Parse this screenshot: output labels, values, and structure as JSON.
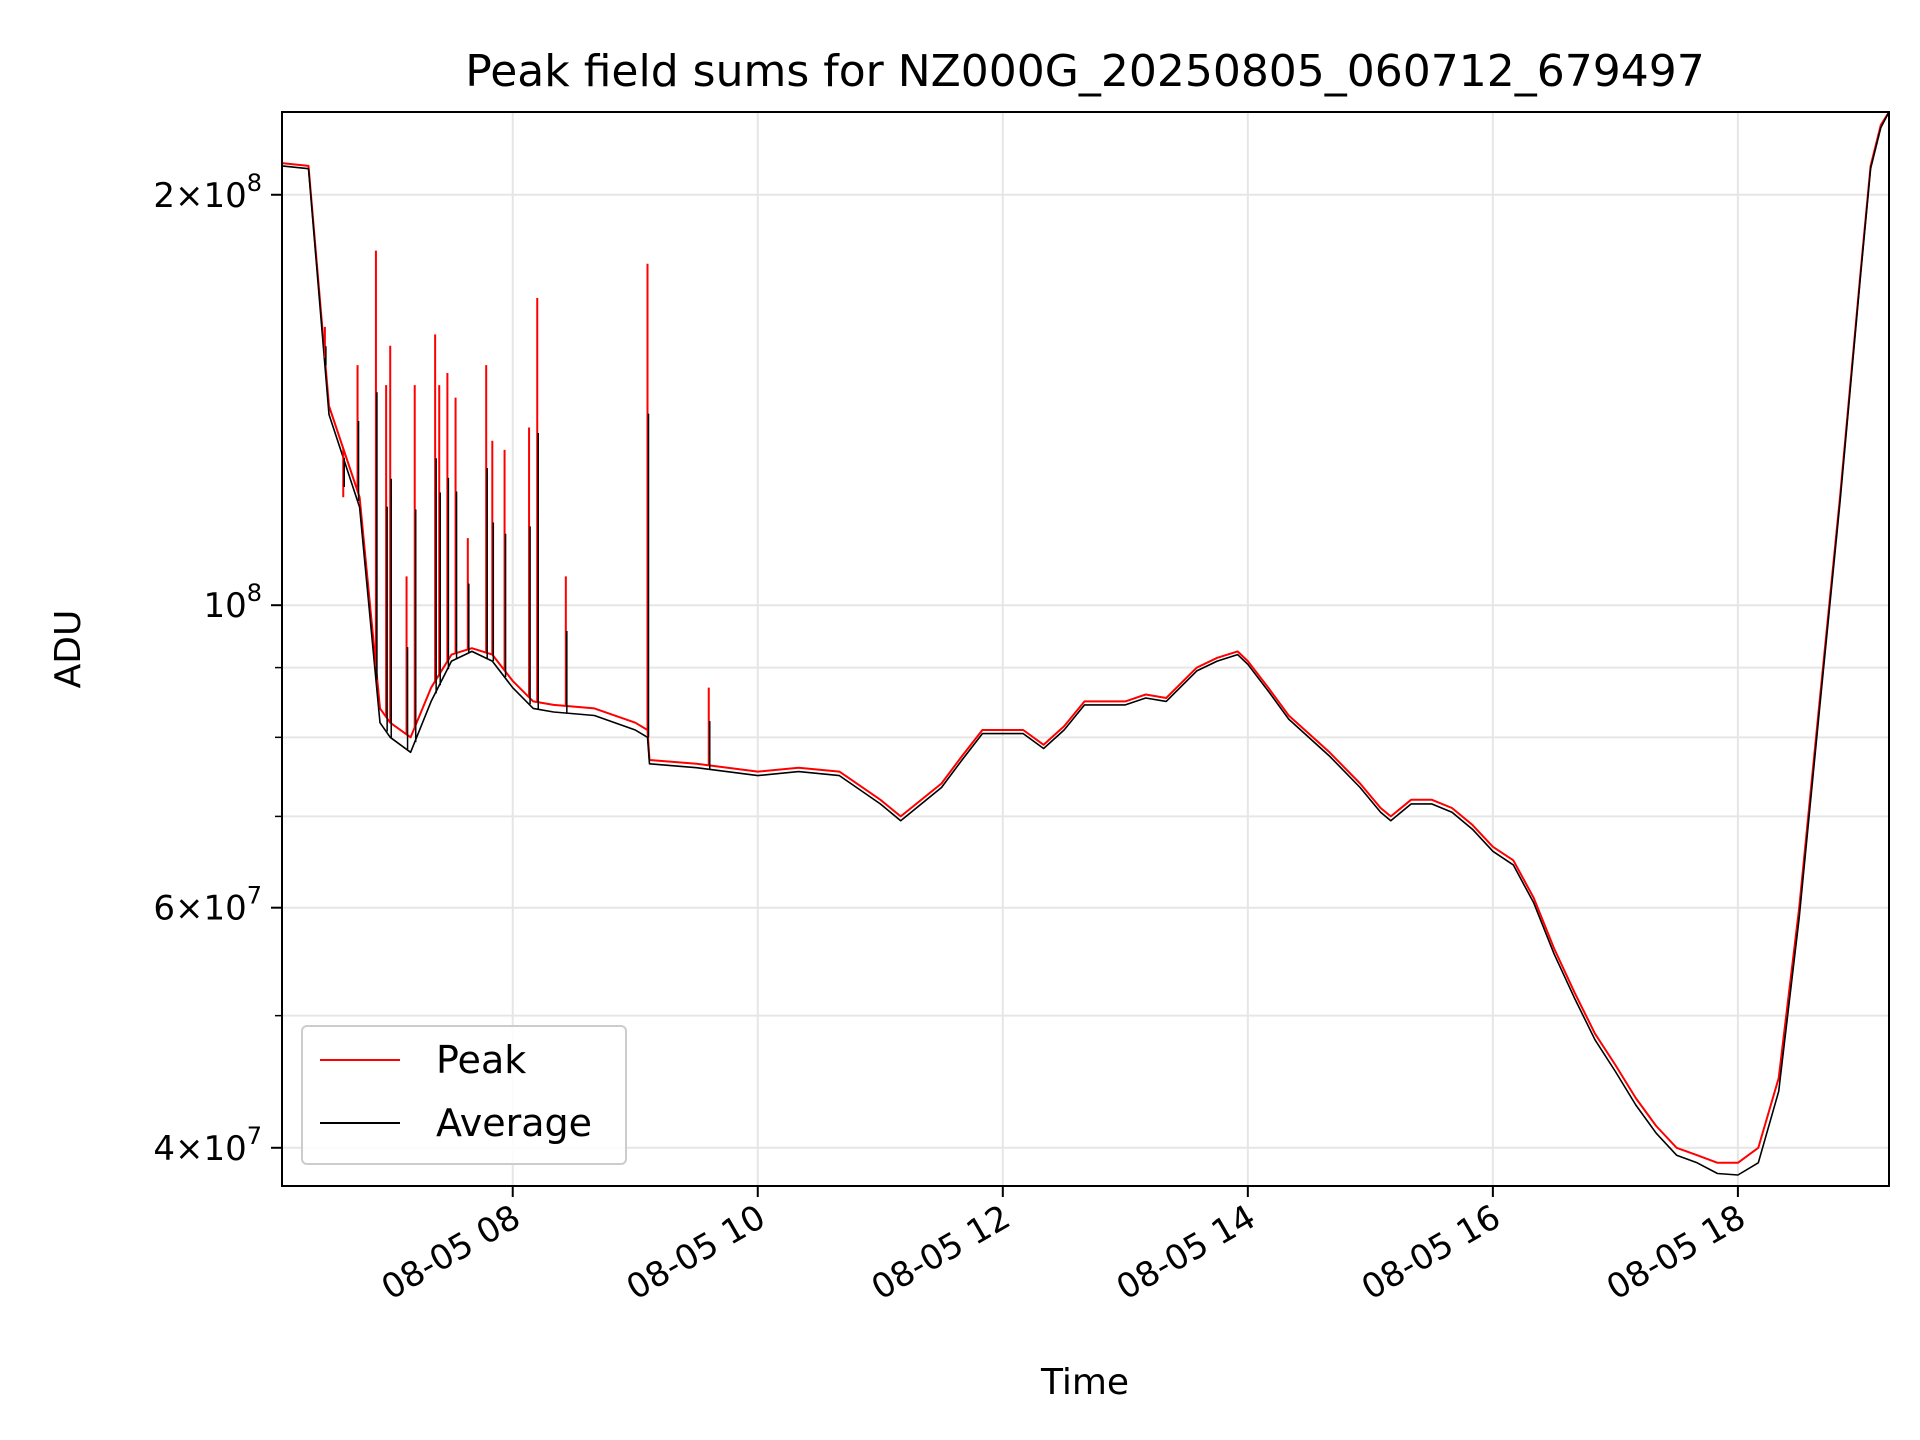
{
  "chart_data": {
    "type": "line",
    "title": "Peak field sums for NZ000G_20250805_060712_679497",
    "xlabel": "Time",
    "ylabel": "ADU",
    "yscale": "log",
    "ylim": [
      37500000,
      230000000
    ],
    "xlim": [
      "08-05 06:07",
      "08-05 19:14"
    ],
    "grid": true,
    "legend_position": "lower left",
    "x_ticks": [
      "08-05 08",
      "08-05 10",
      "08-05 12",
      "08-05 14",
      "08-05 16",
      "08-05 18"
    ],
    "y_major_ticks": [
      {
        "value": 40000000,
        "mantissa": "4",
        "exp": "7"
      },
      {
        "value": 60000000,
        "mantissa": "6",
        "exp": "7"
      },
      {
        "value": 100000000,
        "mantissa": "",
        "exp": "8"
      },
      {
        "value": 200000000,
        "mantissa": "2",
        "exp": "8"
      }
    ],
    "y_minor_gridlines": [
      50000000,
      70000000,
      80000000,
      90000000
    ],
    "series": [
      {
        "name": "Peak",
        "color": "#ff0000",
        "x": [
          "06:07",
          "06:20",
          "06:30",
          "06:45",
          "06:55",
          "07:00",
          "07:10",
          "07:20",
          "07:30",
          "07:40",
          "07:50",
          "08:00",
          "08:10",
          "08:20",
          "08:40",
          "09:00",
          "09:06",
          "09:07",
          "09:30",
          "10:00",
          "10:20",
          "10:40",
          "11:00",
          "11:10",
          "11:30",
          "11:40",
          "11:50",
          "12:00",
          "12:10",
          "12:20",
          "12:30",
          "12:40",
          "12:50",
          "13:00",
          "13:10",
          "13:20",
          "13:35",
          "13:45",
          "13:55",
          "14:00",
          "14:10",
          "14:20",
          "14:40",
          "14:55",
          "15:05",
          "15:10",
          "15:20",
          "15:30",
          "15:40",
          "15:50",
          "16:00",
          "16:10",
          "16:20",
          "16:30",
          "16:40",
          "16:50",
          "17:00",
          "17:10",
          "17:20",
          "17:30",
          "17:40",
          "17:50",
          "18:00",
          "18:10",
          "18:20",
          "18:30",
          "18:40",
          "18:50",
          "19:00",
          "19:05",
          "19:10",
          "19:14"
        ],
        "y": [
          211000000,
          210000000,
          140000000,
          120000000,
          84000000,
          82000000,
          80000000,
          87000000,
          92000000,
          93000000,
          92000000,
          88000000,
          85000000,
          84500000,
          84000000,
          82000000,
          81000000,
          77000000,
          76500000,
          75500000,
          76000000,
          75500000,
          72000000,
          70000000,
          74000000,
          77500000,
          81000000,
          81000000,
          81000000,
          79000000,
          81500000,
          85000000,
          85000000,
          85000000,
          86000000,
          85500000,
          90000000,
          91500000,
          92500000,
          91000000,
          87000000,
          83000000,
          78000000,
          74000000,
          71000000,
          70000000,
          72000000,
          72000000,
          71000000,
          69000000,
          66500000,
          65000000,
          61000000,
          56000000,
          52000000,
          48500000,
          46000000,
          43500000,
          41500000,
          40000000,
          39500000,
          39000000,
          39000000,
          40000000,
          45000000,
          60000000,
          85000000,
          120000000,
          175000000,
          210000000,
          225000000,
          230000000
        ],
        "spikes": [
          {
            "x": "06:28",
            "y": 160000000
          },
          {
            "x": "06:37",
            "y": 120000000
          },
          {
            "x": "06:44",
            "y": 150000000
          },
          {
            "x": "06:53",
            "y": 182000000
          },
          {
            "x": "06:58",
            "y": 145000000
          },
          {
            "x": "07:00",
            "y": 155000000
          },
          {
            "x": "07:08",
            "y": 105000000
          },
          {
            "x": "07:12",
            "y": 145000000
          },
          {
            "x": "07:22",
            "y": 158000000
          },
          {
            "x": "07:24",
            "y": 145000000
          },
          {
            "x": "07:28",
            "y": 148000000
          },
          {
            "x": "07:32",
            "y": 142000000
          },
          {
            "x": "07:38",
            "y": 112000000
          },
          {
            "x": "07:47",
            "y": 150000000
          },
          {
            "x": "07:50",
            "y": 132000000
          },
          {
            "x": "07:56",
            "y": 130000000
          },
          {
            "x": "08:08",
            "y": 135000000
          },
          {
            "x": "08:12",
            "y": 168000000
          },
          {
            "x": "08:26",
            "y": 105000000
          },
          {
            "x": "09:06",
            "y": 178000000
          },
          {
            "x": "09:36",
            "y": 87000000
          }
        ]
      },
      {
        "name": "Average",
        "color": "#000000",
        "x": [
          "06:07",
          "06:20",
          "06:30",
          "06:45",
          "06:55",
          "07:00",
          "07:10",
          "07:20",
          "07:30",
          "07:40",
          "07:50",
          "08:00",
          "08:10",
          "08:20",
          "08:40",
          "09:00",
          "09:06",
          "09:07",
          "09:30",
          "10:00",
          "10:20",
          "10:40",
          "11:00",
          "11:10",
          "11:30",
          "11:40",
          "11:50",
          "12:00",
          "12:10",
          "12:20",
          "12:30",
          "12:40",
          "12:50",
          "13:00",
          "13:10",
          "13:20",
          "13:35",
          "13:45",
          "13:55",
          "14:00",
          "14:10",
          "14:20",
          "14:40",
          "14:55",
          "15:05",
          "15:10",
          "15:20",
          "15:30",
          "15:40",
          "15:50",
          "16:00",
          "16:10",
          "16:20",
          "16:30",
          "16:40",
          "16:50",
          "17:00",
          "17:10",
          "17:20",
          "17:30",
          "17:40",
          "17:50",
          "18:00",
          "18:10",
          "18:20",
          "18:30",
          "18:40",
          "18:50",
          "19:00",
          "19:05",
          "19:10",
          "19:14"
        ],
        "y": [
          210000000,
          209000000,
          138000000,
          118000000,
          82000000,
          80000000,
          78000000,
          85000000,
          91000000,
          92500000,
          91000000,
          87000000,
          84000000,
          83500000,
          83000000,
          81000000,
          80000000,
          76500000,
          76000000,
          75000000,
          75500000,
          75000000,
          71500000,
          69500000,
          73500000,
          77000000,
          80500000,
          80500000,
          80500000,
          78500000,
          81000000,
          84500000,
          84500000,
          84500000,
          85500000,
          85000000,
          89500000,
          91000000,
          92000000,
          90500000,
          86500000,
          82500000,
          77500000,
          73500000,
          70500000,
          69500000,
          71500000,
          71500000,
          70500000,
          68500000,
          66000000,
          64500000,
          60500000,
          55500000,
          51500000,
          48000000,
          45500000,
          43000000,
          41000000,
          39500000,
          39000000,
          38300000,
          38200000,
          39000000,
          44000000,
          59000000,
          84000000,
          119000000,
          174000000,
          209000000,
          224000000,
          230000000
        ]
      }
    ]
  }
}
